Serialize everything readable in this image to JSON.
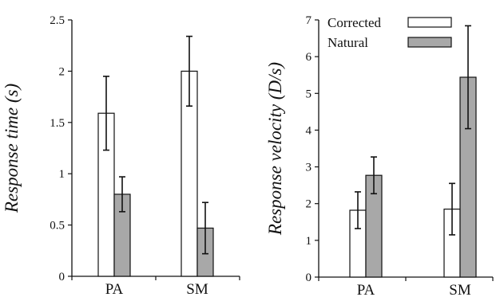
{
  "chart_data": [
    {
      "type": "bar",
      "categories": [
        "PA",
        "SM"
      ],
      "series": [
        {
          "name": "Corrected",
          "values": [
            1.59,
            2.0
          ],
          "errors": [
            0.36,
            0.34
          ]
        },
        {
          "name": "Natural",
          "values": [
            0.8,
            0.47
          ],
          "errors": [
            0.17,
            0.25
          ]
        }
      ],
      "ylabel": "Response time (s)",
      "ylim": [
        0,
        2.5
      ],
      "yticks": [
        "0",
        "0.5",
        "1",
        "1.5",
        "2",
        "2.5"
      ],
      "legend": false,
      "grid": false
    },
    {
      "type": "bar",
      "categories": [
        "PA",
        "SM"
      ],
      "series": [
        {
          "name": "Corrected",
          "values": [
            1.82,
            1.85
          ],
          "errors": [
            0.5,
            0.7
          ]
        },
        {
          "name": "Natural",
          "values": [
            2.77,
            5.44
          ],
          "errors": [
            0.5,
            1.4
          ]
        }
      ],
      "ylabel": "Response velocity (D/s)",
      "ylim": [
        0,
        7
      ],
      "yticks": [
        "0",
        "1",
        "2",
        "3",
        "4",
        "5",
        "6",
        "7"
      ],
      "legend": true,
      "legend_position": "top",
      "grid": false
    }
  ],
  "colors": {
    "corrected": "#ffffff",
    "natural": "#a8a8a8",
    "stroke": "#111111"
  }
}
